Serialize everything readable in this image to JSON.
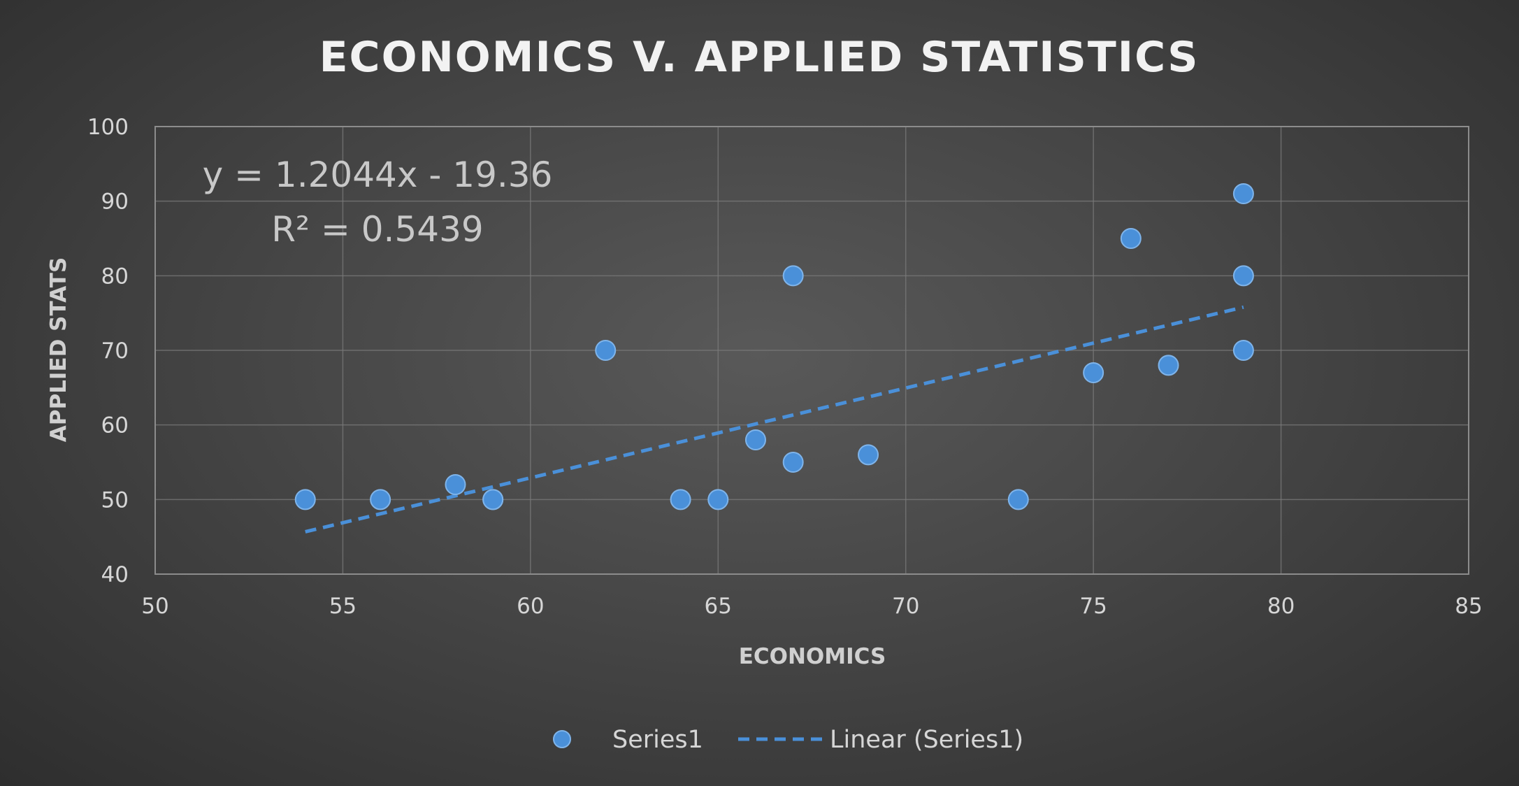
{
  "chart_data": {
    "type": "scatter",
    "title": "ECONOMICS V. APPLIED STATISTICS",
    "xlabel": "ECONOMICS",
    "ylabel": "APPLIED STATS",
    "xlim": [
      50,
      85
    ],
    "ylim": [
      40,
      100
    ],
    "x_ticks": [
      "50",
      "55",
      "60",
      "65",
      "70",
      "75",
      "80",
      "85"
    ],
    "y_ticks": [
      "40",
      "50",
      "60",
      "70",
      "80",
      "90",
      "100"
    ],
    "grid": true,
    "series": [
      {
        "name": "Series1",
        "color": "#4a90d9",
        "points": [
          {
            "x": 54,
            "y": 50
          },
          {
            "x": 56,
            "y": 50
          },
          {
            "x": 58,
            "y": 52
          },
          {
            "x": 59,
            "y": 50
          },
          {
            "x": 59,
            "y": 50
          },
          {
            "x": 62,
            "y": 70
          },
          {
            "x": 64,
            "y": 50
          },
          {
            "x": 65,
            "y": 50
          },
          {
            "x": 66,
            "y": 58
          },
          {
            "x": 67,
            "y": 55
          },
          {
            "x": 67,
            "y": 80
          },
          {
            "x": 69,
            "y": 56
          },
          {
            "x": 73,
            "y": 50
          },
          {
            "x": 75,
            "y": 67
          },
          {
            "x": 76,
            "y": 85
          },
          {
            "x": 77,
            "y": 68
          },
          {
            "x": 79,
            "y": 70
          },
          {
            "x": 79,
            "y": 80
          },
          {
            "x": 79,
            "y": 91
          }
        ]
      }
    ],
    "trendline": {
      "name": "Linear (Series1)",
      "slope": 1.2044,
      "intercept": -19.36,
      "x_range": [
        54,
        79
      ],
      "equation_label": "y = 1.2044x - 19.36",
      "r2_label": "R² = 0.5439"
    },
    "legend": {
      "position": "bottom",
      "items": [
        "Series1",
        "Linear (Series1)"
      ]
    }
  }
}
